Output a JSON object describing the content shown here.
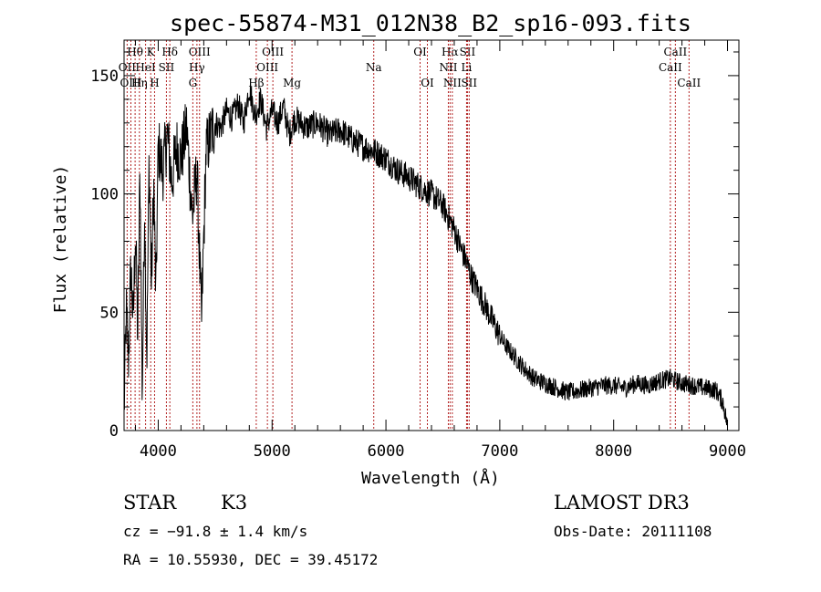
{
  "chart_data": {
    "type": "line",
    "title": "spec-55874-M31_012N38_B2_sp16-093.fits",
    "xlabel": "Wavelength (Å)",
    "ylabel": "Flux (relative)",
    "xlim": [
      3700,
      9100
    ],
    "ylim": [
      0,
      165
    ],
    "x_ticks": [
      4000,
      5000,
      6000,
      7000,
      8000,
      9000
    ],
    "y_ticks": [
      0,
      50,
      100,
      150
    ],
    "series": [
      {
        "name": "flux",
        "x": [
          3700,
          3720,
          3740,
          3760,
          3780,
          3800,
          3820,
          3840,
          3860,
          3880,
          3900,
          3920,
          3940,
          3960,
          3980,
          4000,
          4040,
          4080,
          4120,
          4160,
          4200,
          4250,
          4300,
          4340,
          4380,
          4420,
          4460,
          4500,
          4550,
          4600,
          4650,
          4700,
          4750,
          4800,
          4850,
          4900,
          4950,
          5000,
          5050,
          5100,
          5150,
          5200,
          5300,
          5400,
          5500,
          5600,
          5700,
          5800,
          5900,
          6000,
          6100,
          6200,
          6300,
          6400,
          6500,
          6550,
          6600,
          6650,
          6700,
          6750,
          6800,
          6850,
          6900,
          6950,
          7000,
          7050,
          7100,
          7200,
          7300,
          7400,
          7500,
          7600,
          7700,
          7800,
          7900,
          8000,
          8100,
          8200,
          8300,
          8400,
          8500,
          8600,
          8700,
          8800,
          8900,
          8960,
          9000
        ],
        "y": [
          8,
          50,
          30,
          70,
          45,
          85,
          40,
          110,
          15,
          95,
          30,
          115,
          60,
          105,
          55,
          120,
          110,
          125,
          105,
          120,
          115,
          128,
          90,
          110,
          45,
          118,
          125,
          130,
          128,
          135,
          132,
          138,
          130,
          145,
          133,
          140,
          128,
          135,
          130,
          137,
          125,
          132,
          128,
          130,
          125,
          127,
          123,
          120,
          118,
          115,
          110,
          107,
          103,
          100,
          95,
          90,
          85,
          78,
          72,
          65,
          60,
          55,
          50,
          45,
          40,
          36,
          33,
          27,
          22,
          20,
          18,
          16,
          17,
          18,
          19,
          19,
          18,
          20,
          19,
          21,
          22,
          20,
          19,
          18,
          17,
          12,
          2
        ]
      }
    ],
    "line_markers": [
      {
        "label": "Hθ",
        "wave": 3797,
        "row": 1
      },
      {
        "label": "OII",
        "wave": 3727,
        "row": 2
      },
      {
        "label": "OIII",
        "wave": 3760,
        "row": 3
      },
      {
        "label": "K",
        "wave": 3934,
        "row": 1
      },
      {
        "label": "HeI",
        "wave": 3889,
        "row": 2
      },
      {
        "label": "Hη",
        "wave": 3835,
        "row": 3
      },
      {
        "label": "H",
        "wave": 3968,
        "row": 3
      },
      {
        "label": "Hδ",
        "wave": 4102,
        "row": 1
      },
      {
        "label": "SII",
        "wave": 4072,
        "row": 2
      },
      {
        "label": "OIII",
        "wave": 4363,
        "row": 1
      },
      {
        "label": "Hγ",
        "wave": 4340,
        "row": 2
      },
      {
        "label": "G",
        "wave": 4304,
        "row": 3
      },
      {
        "label": "Hβ",
        "wave": 4861,
        "row": 3
      },
      {
        "label": "OIII",
        "wave": 5007,
        "row": 1
      },
      {
        "label": "OIII",
        "wave": 4959,
        "row": 2
      },
      {
        "label": "Mg",
        "wave": 5175,
        "row": 3
      },
      {
        "label": "Na",
        "wave": 5893,
        "row": 2
      },
      {
        "label": "OI",
        "wave": 6300,
        "row": 1
      },
      {
        "label": "OI",
        "wave": 6364,
        "row": 3
      },
      {
        "label": "Hα",
        "wave": 6563,
        "row": 1
      },
      {
        "label": "NII",
        "wave": 6548,
        "row": 2
      },
      {
        "label": "NII",
        "wave": 6583,
        "row": 3
      },
      {
        "label": "SII",
        "wave": 6716,
        "row": 1
      },
      {
        "label": "Li",
        "wave": 6708,
        "row": 2
      },
      {
        "label": "SII",
        "wave": 6731,
        "row": 3
      },
      {
        "label": "CaII",
        "wave": 8542,
        "row": 1
      },
      {
        "label": "CaII",
        "wave": 8498,
        "row": 2
      },
      {
        "label": "CaII",
        "wave": 8662,
        "row": 3
      }
    ],
    "grid": false
  },
  "info": {
    "object_class": "STAR",
    "subclass": "K3",
    "survey": "LAMOST DR3",
    "redshift_text": "cz = −91.8 ± 1.4 km/s",
    "obs_date": "Obs-Date: 20111108",
    "coords": "RA =  10.55930, DEC =  39.45172"
  },
  "colors": {
    "line": "#000000",
    "marker": "#b22222",
    "axis": "#000000"
  }
}
